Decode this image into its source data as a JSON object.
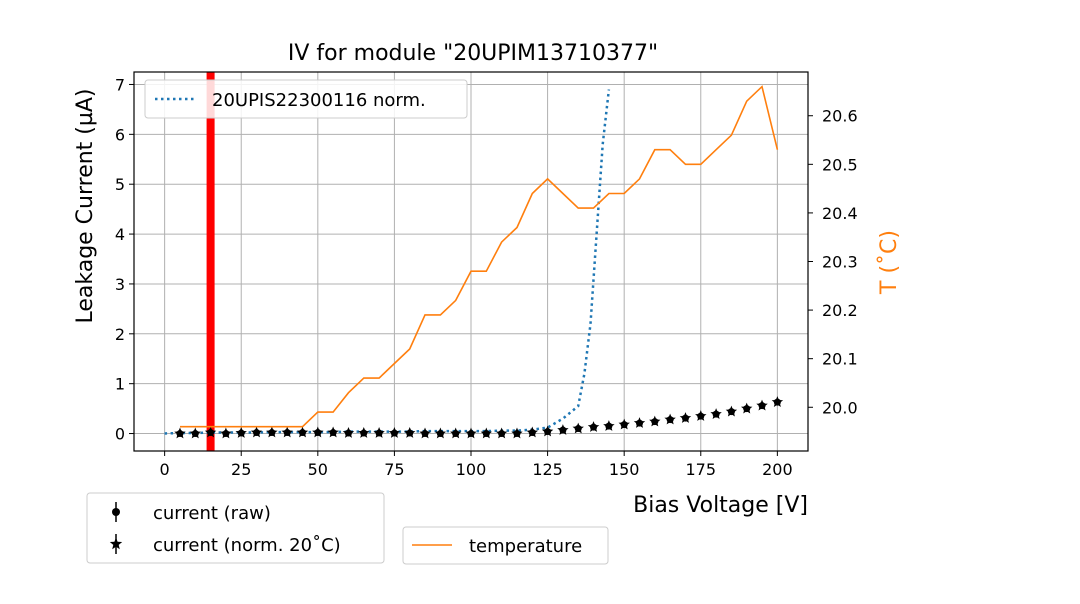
{
  "chart_data": {
    "type": "line",
    "title": "IV for module \"20UPIM13710377\"",
    "xlabel": "Bias Voltage [V]",
    "ylabel": "Leakage Current (µA)",
    "y2label": "T (˚C)",
    "xlim": [
      -10,
      210
    ],
    "ylim": [
      -0.35,
      7.25
    ],
    "y2lim": [
      19.91,
      20.69
    ],
    "xticks": [
      0,
      25,
      50,
      75,
      100,
      125,
      150,
      175,
      200
    ],
    "xtick_labels": [
      "0",
      "25",
      "50",
      "75",
      "100",
      "125",
      "150",
      "175",
      "200"
    ],
    "yticks": [
      0,
      1,
      2,
      3,
      4,
      5,
      6,
      7
    ],
    "ytick_labels": [
      "0",
      "1",
      "2",
      "3",
      "4",
      "5",
      "6",
      "7"
    ],
    "y2ticks": [
      20.0,
      20.1,
      20.2,
      20.3,
      20.4,
      20.5,
      20.6
    ],
    "y2tick_labels": [
      "20.0",
      "20.1",
      "20.2",
      "20.3",
      "20.4",
      "20.5",
      "20.6"
    ],
    "grid": true,
    "vertical_marker": {
      "x": 15,
      "color": "#ff0000"
    },
    "legends": {
      "top_left": [
        "20UPIS22300116 norm."
      ],
      "bottom_left": [
        "current (raw)",
        "current (norm. 20˚C)"
      ],
      "bottom_right": [
        "temperature"
      ]
    },
    "series": [
      {
        "name": "20UPIS22300116 norm.",
        "axis": "left",
        "style": "dotted",
        "color": "#1f77b4",
        "x": [
          0,
          5,
          10,
          15,
          20,
          25,
          30,
          35,
          40,
          45,
          50,
          55,
          60,
          65,
          70,
          75,
          80,
          85,
          90,
          95,
          100,
          105,
          110,
          115,
          120,
          125,
          130,
          135,
          137,
          139,
          141,
          143,
          145
        ],
        "y": [
          0,
          0.01,
          0.01,
          0.02,
          0.02,
          0.02,
          0.02,
          0.03,
          0.03,
          0.03,
          0.03,
          0.03,
          0.04,
          0.04,
          0.04,
          0.04,
          0.04,
          0.05,
          0.05,
          0.05,
          0.05,
          0.05,
          0.06,
          0.06,
          0.08,
          0.12,
          0.3,
          0.55,
          1.2,
          2.2,
          4.0,
          5.8,
          6.9
        ]
      },
      {
        "name": "current (raw)",
        "axis": "left",
        "style": "marker-circle",
        "color": "#000000",
        "x": [
          5,
          10,
          15,
          20,
          25,
          30,
          35,
          40,
          45,
          50,
          55,
          60,
          65,
          70,
          75,
          80,
          85,
          90,
          95,
          100,
          105,
          110,
          115,
          120,
          125,
          130,
          135,
          140,
          145,
          150,
          155,
          160,
          165,
          170,
          175,
          180,
          185,
          190,
          195,
          200
        ],
        "y": [
          0.0,
          0.0,
          0.02,
          0.0,
          0.01,
          0.02,
          0.02,
          0.02,
          0.02,
          0.02,
          0.02,
          0.01,
          0.01,
          0.01,
          0.01,
          0.01,
          0.0,
          0.0,
          0.0,
          0.0,
          0.0,
          0.0,
          0.0,
          0.02,
          0.04,
          0.07,
          0.1,
          0.13,
          0.15,
          0.18,
          0.21,
          0.24,
          0.28,
          0.31,
          0.35,
          0.39,
          0.44,
          0.5,
          0.56,
          0.63
        ]
      },
      {
        "name": "current (norm. 20˚C)",
        "axis": "left",
        "style": "marker-star",
        "color": "#000000",
        "x": [
          5,
          10,
          15,
          20,
          25,
          30,
          35,
          40,
          45,
          50,
          55,
          60,
          65,
          70,
          75,
          80,
          85,
          90,
          95,
          100,
          105,
          110,
          115,
          120,
          125,
          130,
          135,
          140,
          145,
          150,
          155,
          160,
          165,
          170,
          175,
          180,
          185,
          190,
          195,
          200
        ],
        "y": [
          0.0,
          0.0,
          0.02,
          0.0,
          0.01,
          0.02,
          0.02,
          0.02,
          0.02,
          0.02,
          0.02,
          0.01,
          0.01,
          0.01,
          0.01,
          0.01,
          0.0,
          0.0,
          0.0,
          0.0,
          0.0,
          0.0,
          0.0,
          0.02,
          0.04,
          0.07,
          0.1,
          0.13,
          0.15,
          0.18,
          0.21,
          0.24,
          0.28,
          0.31,
          0.35,
          0.39,
          0.44,
          0.5,
          0.56,
          0.63
        ]
      },
      {
        "name": "temperature",
        "axis": "right",
        "style": "solid",
        "color": "#ff7f0e",
        "x": [
          5,
          10,
          15,
          20,
          25,
          30,
          35,
          40,
          45,
          50,
          55,
          60,
          65,
          70,
          75,
          80,
          85,
          90,
          95,
          100,
          105,
          110,
          115,
          120,
          125,
          130,
          135,
          140,
          145,
          150,
          155,
          160,
          165,
          170,
          175,
          180,
          185,
          190,
          195,
          200
        ],
        "y": [
          19.96,
          19.96,
          19.96,
          19.96,
          19.96,
          19.96,
          19.96,
          19.96,
          19.96,
          19.99,
          19.99,
          20.03,
          20.06,
          20.06,
          20.09,
          20.12,
          20.19,
          20.19,
          20.22,
          20.28,
          20.28,
          20.34,
          20.37,
          20.44,
          20.47,
          20.44,
          20.41,
          20.41,
          20.44,
          20.44,
          20.47,
          20.53,
          20.53,
          20.5,
          20.5,
          20.53,
          20.56,
          20.63,
          20.66,
          20.53
        ]
      }
    ]
  }
}
